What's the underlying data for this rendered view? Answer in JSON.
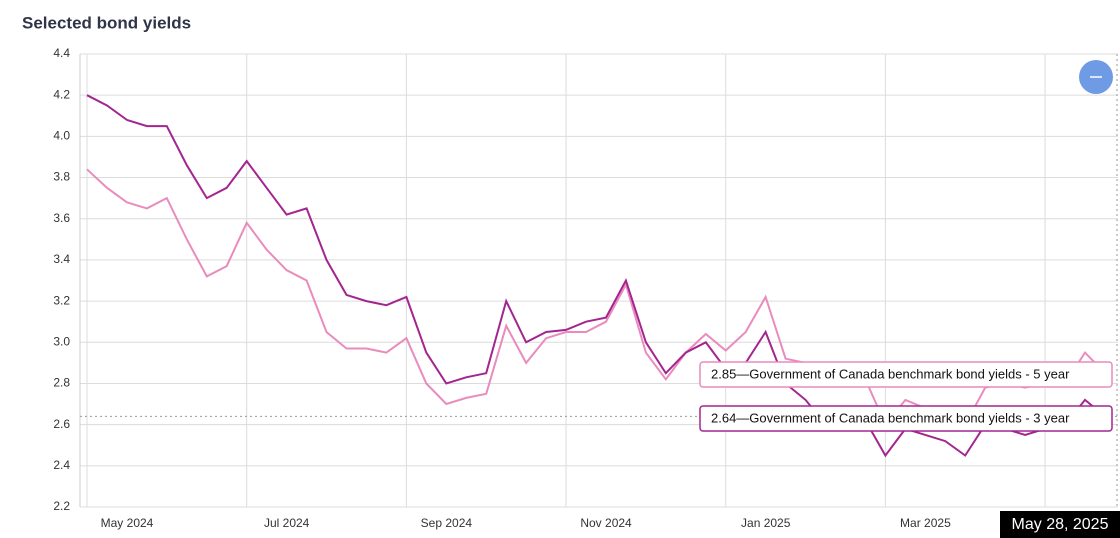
{
  "chart_data": {
    "type": "line",
    "title": "Selected bond yields",
    "categories": [
      "May 2024",
      null,
      null,
      null,
      null,
      null,
      null,
      null,
      "Jul 2024",
      null,
      null,
      null,
      null,
      null,
      null,
      null,
      "Sep 2024",
      null,
      null,
      null,
      null,
      null,
      null,
      null,
      "Nov 2024",
      null,
      null,
      null,
      null,
      null,
      null,
      null,
      "Jan 2025",
      null,
      null,
      null,
      null,
      null,
      null,
      null,
      "Mar 2025",
      null,
      null,
      null,
      null,
      null,
      null,
      null,
      null,
      null,
      null,
      "May 28, 2025"
    ],
    "series": [
      {
        "color": "#a3258f",
        "values": [
          4.2,
          4.15,
          4.08,
          4.05,
          4.05,
          3.86,
          3.7,
          3.75,
          3.88,
          3.75,
          3.62,
          3.65,
          3.4,
          3.23,
          3.2,
          3.18,
          3.22,
          2.95,
          2.8,
          2.83,
          2.85,
          3.2,
          3.0,
          3.05,
          3.06,
          3.1,
          3.12,
          3.3,
          3.0,
          2.85,
          2.95,
          3.0,
          2.87,
          2.9,
          3.05,
          2.8,
          2.72,
          2.6,
          2.62,
          2.62,
          2.45,
          2.58,
          2.55,
          2.52,
          2.45,
          2.6,
          2.58,
          2.55,
          2.58,
          2.6,
          2.72,
          2.64
        ]
      },
      {
        "color": "#e98cbd",
        "values": [
          3.84,
          3.75,
          3.68,
          3.65,
          3.7,
          3.5,
          3.32,
          3.37,
          3.58,
          3.45,
          3.35,
          3.3,
          3.05,
          2.97,
          2.97,
          2.95,
          3.02,
          2.8,
          2.7,
          2.73,
          2.75,
          3.08,
          2.9,
          3.02,
          3.05,
          3.05,
          3.1,
          3.28,
          2.95,
          2.82,
          2.95,
          3.04,
          2.96,
          3.05,
          3.22,
          2.92,
          2.9,
          2.82,
          2.8,
          2.82,
          2.6,
          2.72,
          2.68,
          2.66,
          2.6,
          2.78,
          2.8,
          2.78,
          2.8,
          2.8,
          2.95,
          2.85
        ]
      }
    ],
    "tooltips": [
      "2.85—Government of Canada benchmark bond yields - 5 year",
      "2.64—Government of Canada benchmark bond yields - 3 year"
    ],
    "ylim": [
      2.2,
      4.4
    ],
    "yticks": [
      2.2,
      2.4,
      2.6,
      2.8,
      {
        "value": 3,
        "label": "3.0"
      },
      3.2,
      3.4,
      3.6,
      3.8,
      {
        "value": 4,
        "label": "4.0"
      },
      4.2,
      4.4
    ],
    "grid": true
  }
}
